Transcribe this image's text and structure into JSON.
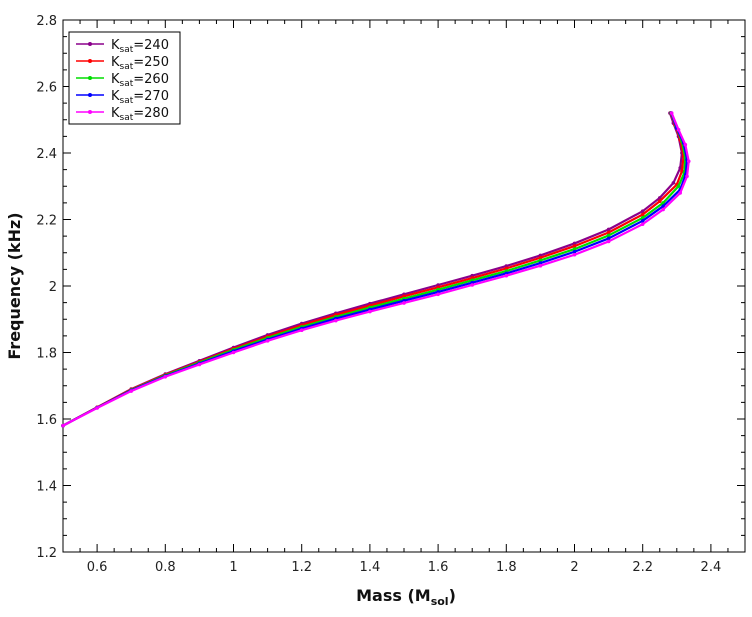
{
  "chart_data": {
    "type": "line",
    "xlabel": {
      "main": "Mass (M",
      "sub": "sol",
      "end": ")"
    },
    "ylabel": "Frequency (kHz)",
    "xlim": [
      0.5,
      2.5
    ],
    "ylim": [
      1.2,
      2.8
    ],
    "xticks": [
      0.6,
      0.8,
      1,
      1.2,
      1.4,
      1.6,
      1.8,
      2,
      2.2,
      2.4
    ],
    "xtick_labels": [
      "0.6",
      "0.8",
      "1",
      "1.2",
      "1.4",
      "1.6",
      "1.8",
      "2",
      "2.2",
      "2.4"
    ],
    "yticks": [
      1.2,
      1.4,
      1.6,
      1.8,
      2,
      2.2,
      2.4,
      2.6,
      2.8
    ],
    "ytick_labels": [
      "1.2",
      "1.4",
      "1.6",
      "1.8",
      "2",
      "2.2",
      "2.4",
      "2.6",
      "2.8"
    ],
    "grid": false,
    "legend_position": "top-left",
    "series": [
      {
        "name": "240",
        "name_prefix": "K",
        "name_sub": "sat",
        "name_suffix": "=240",
        "color": "#8b008b",
        "points": [
          [
            0.5,
            1.58
          ],
          [
            0.6,
            1.635
          ],
          [
            0.7,
            1.69
          ],
          [
            0.8,
            1.735
          ],
          [
            0.9,
            1.775
          ],
          [
            1.0,
            1.815
          ],
          [
            1.1,
            1.853
          ],
          [
            1.2,
            1.887
          ],
          [
            1.3,
            1.918
          ],
          [
            1.4,
            1.947
          ],
          [
            1.5,
            1.975
          ],
          [
            1.6,
            2.003
          ],
          [
            1.7,
            2.031
          ],
          [
            1.8,
            2.06
          ],
          [
            1.9,
            2.092
          ],
          [
            2.0,
            2.128
          ],
          [
            2.1,
            2.17
          ],
          [
            2.2,
            2.225
          ],
          [
            2.25,
            2.265
          ],
          [
            2.29,
            2.31
          ],
          [
            2.31,
            2.355
          ],
          [
            2.315,
            2.4
          ],
          [
            2.305,
            2.45
          ],
          [
            2.29,
            2.49
          ],
          [
            2.28,
            2.52
          ]
        ]
      },
      {
        "name": "250",
        "name_prefix": "K",
        "name_sub": "sat",
        "name_suffix": "=250",
        "color": "#ff0000",
        "points": [
          [
            0.5,
            1.58
          ],
          [
            0.6,
            1.635
          ],
          [
            0.7,
            1.689
          ],
          [
            0.8,
            1.733
          ],
          [
            0.9,
            1.772
          ],
          [
            1.0,
            1.811
          ],
          [
            1.1,
            1.848
          ],
          [
            1.2,
            1.882
          ],
          [
            1.3,
            1.913
          ],
          [
            1.4,
            1.941
          ],
          [
            1.5,
            1.969
          ],
          [
            1.6,
            1.996
          ],
          [
            1.7,
            2.024
          ],
          [
            1.8,
            2.053
          ],
          [
            1.9,
            2.085
          ],
          [
            2.0,
            2.12
          ],
          [
            2.1,
            2.161
          ],
          [
            2.2,
            2.215
          ],
          [
            2.25,
            2.255
          ],
          [
            2.3,
            2.305
          ],
          [
            2.315,
            2.345
          ],
          [
            2.32,
            2.39
          ],
          [
            2.31,
            2.44
          ],
          [
            2.295,
            2.485
          ],
          [
            2.282,
            2.52
          ]
        ]
      },
      {
        "name": "260",
        "name_prefix": "K",
        "name_sub": "sat",
        "name_suffix": "=260",
        "color": "#00dd00",
        "points": [
          [
            0.5,
            1.58
          ],
          [
            0.6,
            1.634
          ],
          [
            0.7,
            1.687
          ],
          [
            0.8,
            1.731
          ],
          [
            0.9,
            1.77
          ],
          [
            1.0,
            1.808
          ],
          [
            1.1,
            1.844
          ],
          [
            1.2,
            1.877
          ],
          [
            1.3,
            1.907
          ],
          [
            1.4,
            1.935
          ],
          [
            1.5,
            1.962
          ],
          [
            1.6,
            1.989
          ],
          [
            1.7,
            2.017
          ],
          [
            1.8,
            2.045
          ],
          [
            1.9,
            2.077
          ],
          [
            2.0,
            2.111
          ],
          [
            2.1,
            2.152
          ],
          [
            2.2,
            2.205
          ],
          [
            2.26,
            2.25
          ],
          [
            2.305,
            2.3
          ],
          [
            2.322,
            2.34
          ],
          [
            2.325,
            2.385
          ],
          [
            2.315,
            2.435
          ],
          [
            2.298,
            2.48
          ],
          [
            2.283,
            2.52
          ]
        ]
      },
      {
        "name": "270",
        "name_prefix": "K",
        "name_sub": "sat",
        "name_suffix": "=270",
        "color": "#0000ff",
        "points": [
          [
            0.5,
            1.58
          ],
          [
            0.6,
            1.634
          ],
          [
            0.7,
            1.686
          ],
          [
            0.8,
            1.729
          ],
          [
            0.9,
            1.767
          ],
          [
            1.0,
            1.804
          ],
          [
            1.1,
            1.839
          ],
          [
            1.2,
            1.872
          ],
          [
            1.3,
            1.902
          ],
          [
            1.4,
            1.929
          ],
          [
            1.5,
            1.956
          ],
          [
            1.6,
            1.982
          ],
          [
            1.7,
            2.01
          ],
          [
            1.8,
            2.038
          ],
          [
            1.9,
            2.069
          ],
          [
            2.0,
            2.103
          ],
          [
            2.1,
            2.143
          ],
          [
            2.2,
            2.196
          ],
          [
            2.26,
            2.24
          ],
          [
            2.31,
            2.29
          ],
          [
            2.326,
            2.335
          ],
          [
            2.33,
            2.38
          ],
          [
            2.32,
            2.43
          ],
          [
            2.3,
            2.475
          ],
          [
            2.284,
            2.52
          ]
        ]
      },
      {
        "name": "280",
        "name_prefix": "K",
        "name_sub": "sat",
        "name_suffix": "=280",
        "color": "#ff00ff",
        "points": [
          [
            0.5,
            1.58
          ],
          [
            0.6,
            1.633
          ],
          [
            0.7,
            1.684
          ],
          [
            0.8,
            1.727
          ],
          [
            0.9,
            1.764
          ],
          [
            1.0,
            1.8
          ],
          [
            1.1,
            1.835
          ],
          [
            1.2,
            1.867
          ],
          [
            1.3,
            1.896
          ],
          [
            1.4,
            1.923
          ],
          [
            1.5,
            1.949
          ],
          [
            1.6,
            1.975
          ],
          [
            1.7,
            2.003
          ],
          [
            1.8,
            2.031
          ],
          [
            1.9,
            2.061
          ],
          [
            2.0,
            2.094
          ],
          [
            2.1,
            2.134
          ],
          [
            2.2,
            2.186
          ],
          [
            2.26,
            2.23
          ],
          [
            2.31,
            2.28
          ],
          [
            2.33,
            2.33
          ],
          [
            2.335,
            2.375
          ],
          [
            2.325,
            2.425
          ],
          [
            2.305,
            2.47
          ],
          [
            2.285,
            2.52
          ]
        ]
      }
    ]
  }
}
